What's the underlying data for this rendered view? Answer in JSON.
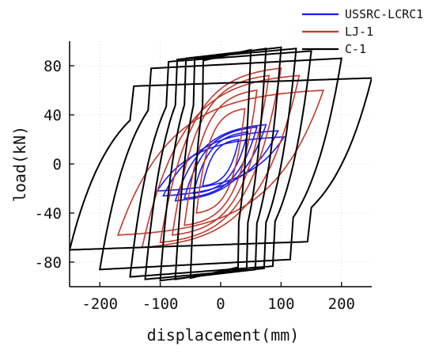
{
  "chart_data": {
    "type": "line",
    "xlabel": "displacement(mm)",
    "ylabel": "load(kN)",
    "xlim": [
      -250,
      250
    ],
    "ylim": [
      -100,
      100
    ],
    "xticks": [
      -200,
      -100,
      0,
      100,
      200
    ],
    "yticks": [
      -80,
      -40,
      0,
      40,
      80
    ],
    "legend_position": "top-right",
    "series": [
      {
        "name": "USSRC-LCRC1",
        "color": "#1a1aee",
        "loops": [
          {
            "amplitude": 30,
            "peak_pos": 20,
            "peak_neg": -18
          },
          {
            "amplitude": 45,
            "peak_pos": 26,
            "peak_neg": -24
          },
          {
            "amplitude": 60,
            "peak_pos": 30,
            "peak_neg": -28
          },
          {
            "amplitude": 75,
            "peak_pos": 32,
            "peak_neg": -30
          },
          {
            "amplitude": 95,
            "peak_pos": 27,
            "peak_neg": -26
          },
          {
            "amplitude": 105,
            "peak_pos": 22,
            "peak_neg": -22
          }
        ]
      },
      {
        "name": "LJ-1",
        "color": "#c0392b",
        "loops": [
          {
            "amplitude": 40,
            "peak_pos": 45,
            "peak_neg": -40
          },
          {
            "amplitude": 60,
            "peak_pos": 60,
            "peak_neg": -50
          },
          {
            "amplitude": 80,
            "peak_pos": 72,
            "peak_neg": -58
          },
          {
            "amplitude": 100,
            "peak_pos": 78,
            "peak_neg": -64
          },
          {
            "amplitude": 130,
            "peak_pos": 72,
            "peak_neg": -68
          },
          {
            "amplitude": 170,
            "peak_pos": 60,
            "peak_neg": -58
          }
        ]
      },
      {
        "name": "C-1",
        "color": "#000000",
        "loops": [
          {
            "amplitude": 50,
            "peak_pos": 93,
            "peak_neg": -93
          },
          {
            "amplitude": 75,
            "peak_pos": 94,
            "peak_neg": -94
          },
          {
            "amplitude": 100,
            "peak_pos": 95,
            "peak_neg": -95
          },
          {
            "amplitude": 125,
            "peak_pos": 94,
            "peak_neg": -94
          },
          {
            "amplitude": 150,
            "peak_pos": 92,
            "peak_neg": -92
          },
          {
            "amplitude": 200,
            "peak_pos": 86,
            "peak_neg": -86
          },
          {
            "amplitude": 250,
            "peak_pos": 70,
            "peak_neg": -70
          }
        ]
      }
    ]
  }
}
